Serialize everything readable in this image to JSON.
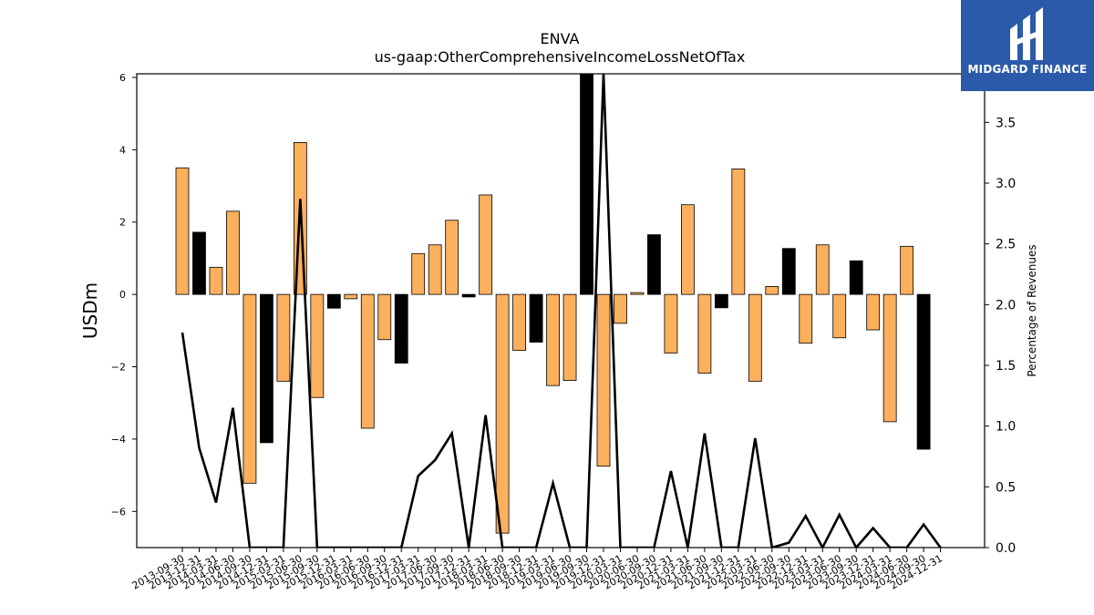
{
  "brand": {
    "name": "MIDGARD FINANCE",
    "icon": "midgard-logo-icon",
    "color": "#2b5aa8"
  },
  "chart_data": {
    "type": "bar",
    "title": "ENVA",
    "subtitle": "us-gaap:OtherComprehensiveIncomeLossNetOfTax",
    "ylabel": "USDm",
    "y2label": "Percentage of Revenues",
    "ylim": [
      -7,
      6.1
    ],
    "y2lim": [
      0,
      3.9
    ],
    "yticks": [
      -6,
      -4,
      -2,
      0,
      2,
      4,
      6
    ],
    "y2ticks": [
      0.0,
      0.5,
      1.0,
      1.5,
      2.0,
      2.5,
      3.0,
      3.5
    ],
    "colors": {
      "positive_period": "#fbb05e",
      "negative_period": "#000000",
      "line": "#000000"
    },
    "categories": [
      "2013-09-30",
      "2013-12-31",
      "2014-03-31",
      "2014-06-30",
      "2014-09-30",
      "2014-12-31",
      "2015-03-31",
      "2015-06-30",
      "2015-09-30",
      "2015-12-31",
      "2016-03-31",
      "2016-06-30",
      "2016-09-30",
      "2016-12-31",
      "2017-03-31",
      "2017-06-30",
      "2017-09-30",
      "2017-12-31",
      "2018-03-31",
      "2018-06-30",
      "2018-09-30",
      "2018-12-31",
      "2019-03-31",
      "2019-06-30",
      "2019-09-30",
      "2019-12-31",
      "2020-03-31",
      "2020-06-30",
      "2020-09-30",
      "2020-12-31",
      "2021-03-31",
      "2021-06-30",
      "2021-09-30",
      "2021-12-31",
      "2022-03-31",
      "2022-06-30",
      "2022-09-30",
      "2022-12-31",
      "2023-03-31",
      "2023-06-30",
      "2023-09-30",
      "2023-12-31",
      "2024-03-31",
      "2024-06-30",
      "2024-09-30",
      "2024-12-31"
    ],
    "values": [
      3.5,
      1.72,
      0.75,
      2.3,
      -5.22,
      -4.1,
      -2.4,
      4.2,
      -2.85,
      -0.38,
      -0.12,
      -3.7,
      -1.25,
      -1.9,
      1.13,
      1.37,
      2.05,
      -0.07,
      2.75,
      -6.6,
      -1.55,
      -1.32,
      -2.52,
      -2.38,
      6.1,
      -4.75,
      -0.8,
      0.05,
      1.65,
      -1.62,
      2.48,
      -2.18,
      -0.37,
      3.47,
      -2.4,
      0.22,
      1.27,
      -1.35,
      1.37,
      -1.2,
      0.93,
      -0.98,
      -3.52,
      1.33,
      -4.28,
      0
    ],
    "bar_kind": [
      "pos",
      "neg",
      "pos",
      "pos",
      "pos",
      "neg",
      "pos",
      "pos",
      "pos",
      "neg",
      "pos",
      "pos",
      "pos",
      "neg",
      "pos",
      "pos",
      "pos",
      "neg",
      "pos",
      "pos",
      "pos",
      "neg",
      "pos",
      "pos",
      "neg",
      "pos",
      "pos",
      "pos",
      "neg",
      "pos",
      "pos",
      "pos",
      "neg",
      "pos",
      "pos",
      "pos",
      "neg",
      "pos",
      "pos",
      "pos",
      "neg",
      "pos",
      "pos",
      "pos",
      "neg",
      "pos"
    ],
    "line_values": [
      1.77,
      0.82,
      0.37,
      1.15,
      0,
      0,
      0,
      2.87,
      0,
      0,
      0,
      0,
      0,
      0,
      0.59,
      0.72,
      0.94,
      0,
      1.09,
      0,
      0,
      0,
      0.53,
      0,
      0,
      3.9,
      0,
      0,
      0,
      0.63,
      0,
      0.94,
      0,
      0,
      0.9,
      0,
      0.04,
      0.26,
      0,
      0.27,
      0,
      0.16,
      0,
      0,
      0.19,
      0
    ]
  }
}
